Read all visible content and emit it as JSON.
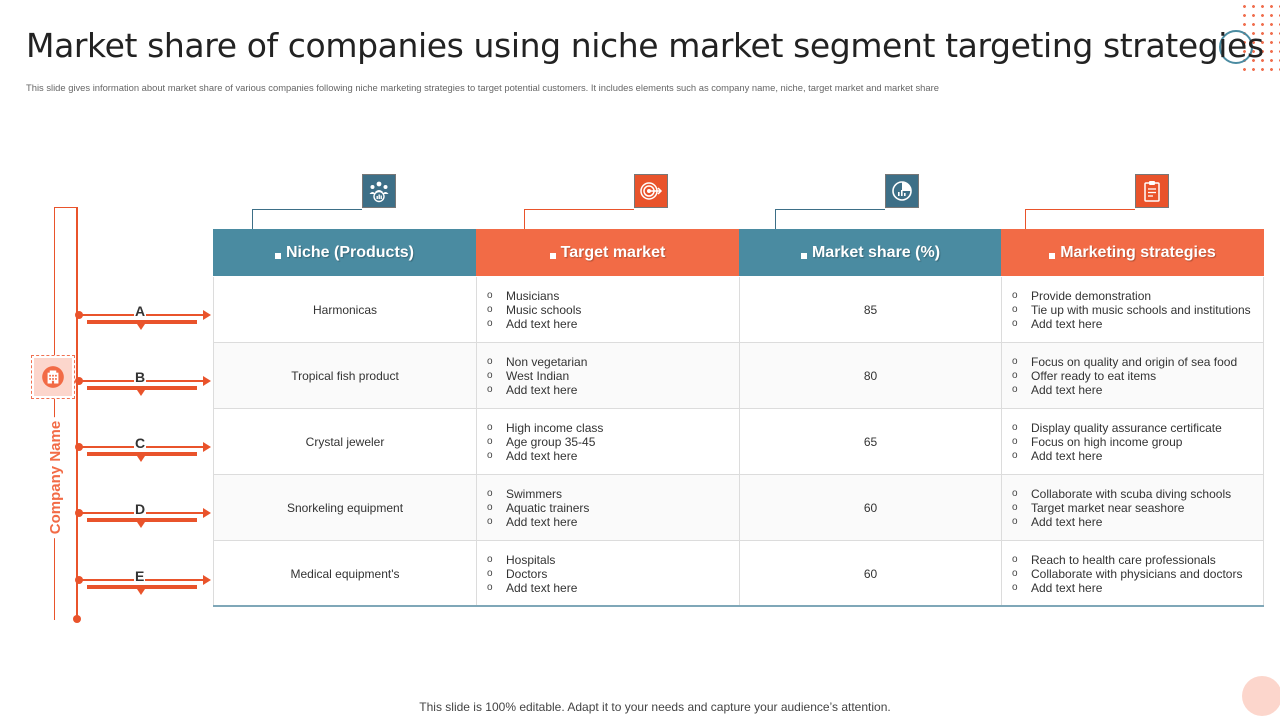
{
  "title": "Market share of companies using niche market segment targeting strategies",
  "subtitle": "This slide gives information about market share of various companies following niche marketing strategies to target potential customers. It includes elements such as company name, niche, target market and market share",
  "footer": "This slide is 100% editable. Adapt it to your needs and capture your audience’s attention.",
  "side_label": "Company Name",
  "colors": {
    "blue": "#4a8ba1",
    "orange": "#f26b46",
    "dark_orange": "#e9532b"
  },
  "columns": [
    {
      "label": "Niche (Products)",
      "icon": "team-chart-icon",
      "color": "blue"
    },
    {
      "label": "Target market",
      "icon": "target-icon",
      "color": "orange"
    },
    {
      "label": "Market share (%)",
      "icon": "pie-chart-icon",
      "color": "blue"
    },
    {
      "label": "Marketing strategies",
      "icon": "clipboard-icon",
      "color": "orange"
    }
  ],
  "rows": [
    {
      "company": "A",
      "niche": "Harmonicas",
      "target_market": [
        "Musicians",
        "Music schools",
        "Add text here"
      ],
      "market_share": "85",
      "strategies": [
        "Provide demonstration",
        "Tie up with music schools and institutions",
        "Add text here"
      ]
    },
    {
      "company": "B",
      "niche": "Tropical fish product",
      "target_market": [
        "Non vegetarian",
        "West Indian",
        "Add text here"
      ],
      "market_share": "80",
      "strategies": [
        "Focus on quality and origin of sea food",
        "Offer ready to eat items",
        "Add text here"
      ]
    },
    {
      "company": "C",
      "niche": "Crystal jeweler",
      "target_market": [
        "High income class",
        "Age group 35-45",
        "Add text here"
      ],
      "market_share": "65",
      "strategies": [
        "Display quality assurance certificate",
        "Focus on high income group",
        "Add text here"
      ]
    },
    {
      "company": "D",
      "niche": "Snorkeling equipment",
      "target_market": [
        "Swimmers",
        "Aquatic trainers",
        "Add text here"
      ],
      "market_share": "60",
      "strategies": [
        "Collaborate with scuba diving schools",
        "Target market near seashore",
        "Add text here"
      ]
    },
    {
      "company": "E",
      "niche": "Medical equipment's",
      "target_market": [
        "Hospitals",
        "Doctors",
        "Add text here"
      ],
      "market_share": "60",
      "strategies": [
        "Reach to health care professionals",
        "Collaborate with physicians and doctors",
        "Add text here"
      ]
    }
  ]
}
